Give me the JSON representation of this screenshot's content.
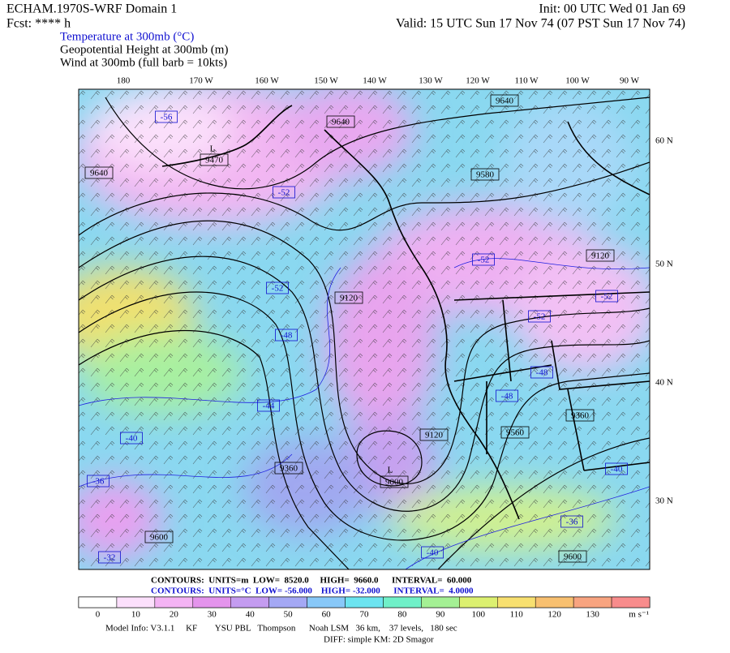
{
  "header": {
    "left": [
      "ECHAM.1970S-WRF Domain 1",
      "Fcst: **** h"
    ],
    "right": [
      "Init: 00 UTC Wed 01 Jan 69",
      "Valid: 15 UTC Sun 17 Nov 74 (07 PST Sun 17 Nov 74)"
    ],
    "fields": [
      "Temperature at 300mb (°C)",
      "Geopotential Height at 300mb (m)",
      "Wind at 300mb (full barb = 10kts)"
    ]
  },
  "map": {
    "longitudes": [
      "180",
      "170 W",
      "160 W",
      "150 W",
      "140 W",
      "130 W",
      "120 W",
      "110 W",
      "100 W",
      "90 W"
    ],
    "latitudes": [
      "60 N",
      "50 N",
      "40 N",
      "30 N"
    ],
    "low_labels": [
      "L",
      "L"
    ],
    "height_labels": [
      "9640",
      "9640",
      "9640",
      "9470",
      "9580",
      "9120",
      "9120",
      "9120",
      "9360",
      "9360",
      "9560",
      "9000",
      "9600",
      "9600"
    ],
    "temperature_labels": [
      "-56",
      "-52",
      "-52",
      "-52",
      "-52",
      "-52",
      "-48",
      "-48",
      "-48",
      "-44",
      "-40",
      "-36",
      "-32",
      "-40",
      "-40",
      "-36"
    ]
  },
  "footer": {
    "height_contours": "CONTOURS:  UNITS=m  LOW=  8520.0     HIGH=  9660.0      INTERVAL=  60.000",
    "temperature_contours": "CONTOURS:  UNITS=°C  LOW= -56.000    HIGH= -32.000      INTERVAL=  4.0000",
    "colorbar_labels": [
      "0",
      "10",
      "20",
      "30",
      "40",
      "50",
      "60",
      "70",
      "80",
      "90",
      "100",
      "110",
      "120",
      "130"
    ],
    "colorbar_unit": "m s⁻¹",
    "model_info": "Model Info: V3.1.1     KF        YSU PBL   Thompson      Noah LSM   36 km,    37 levels,   180 sec",
    "diff": "DIFF: simple KM: 2D Smagor"
  }
}
